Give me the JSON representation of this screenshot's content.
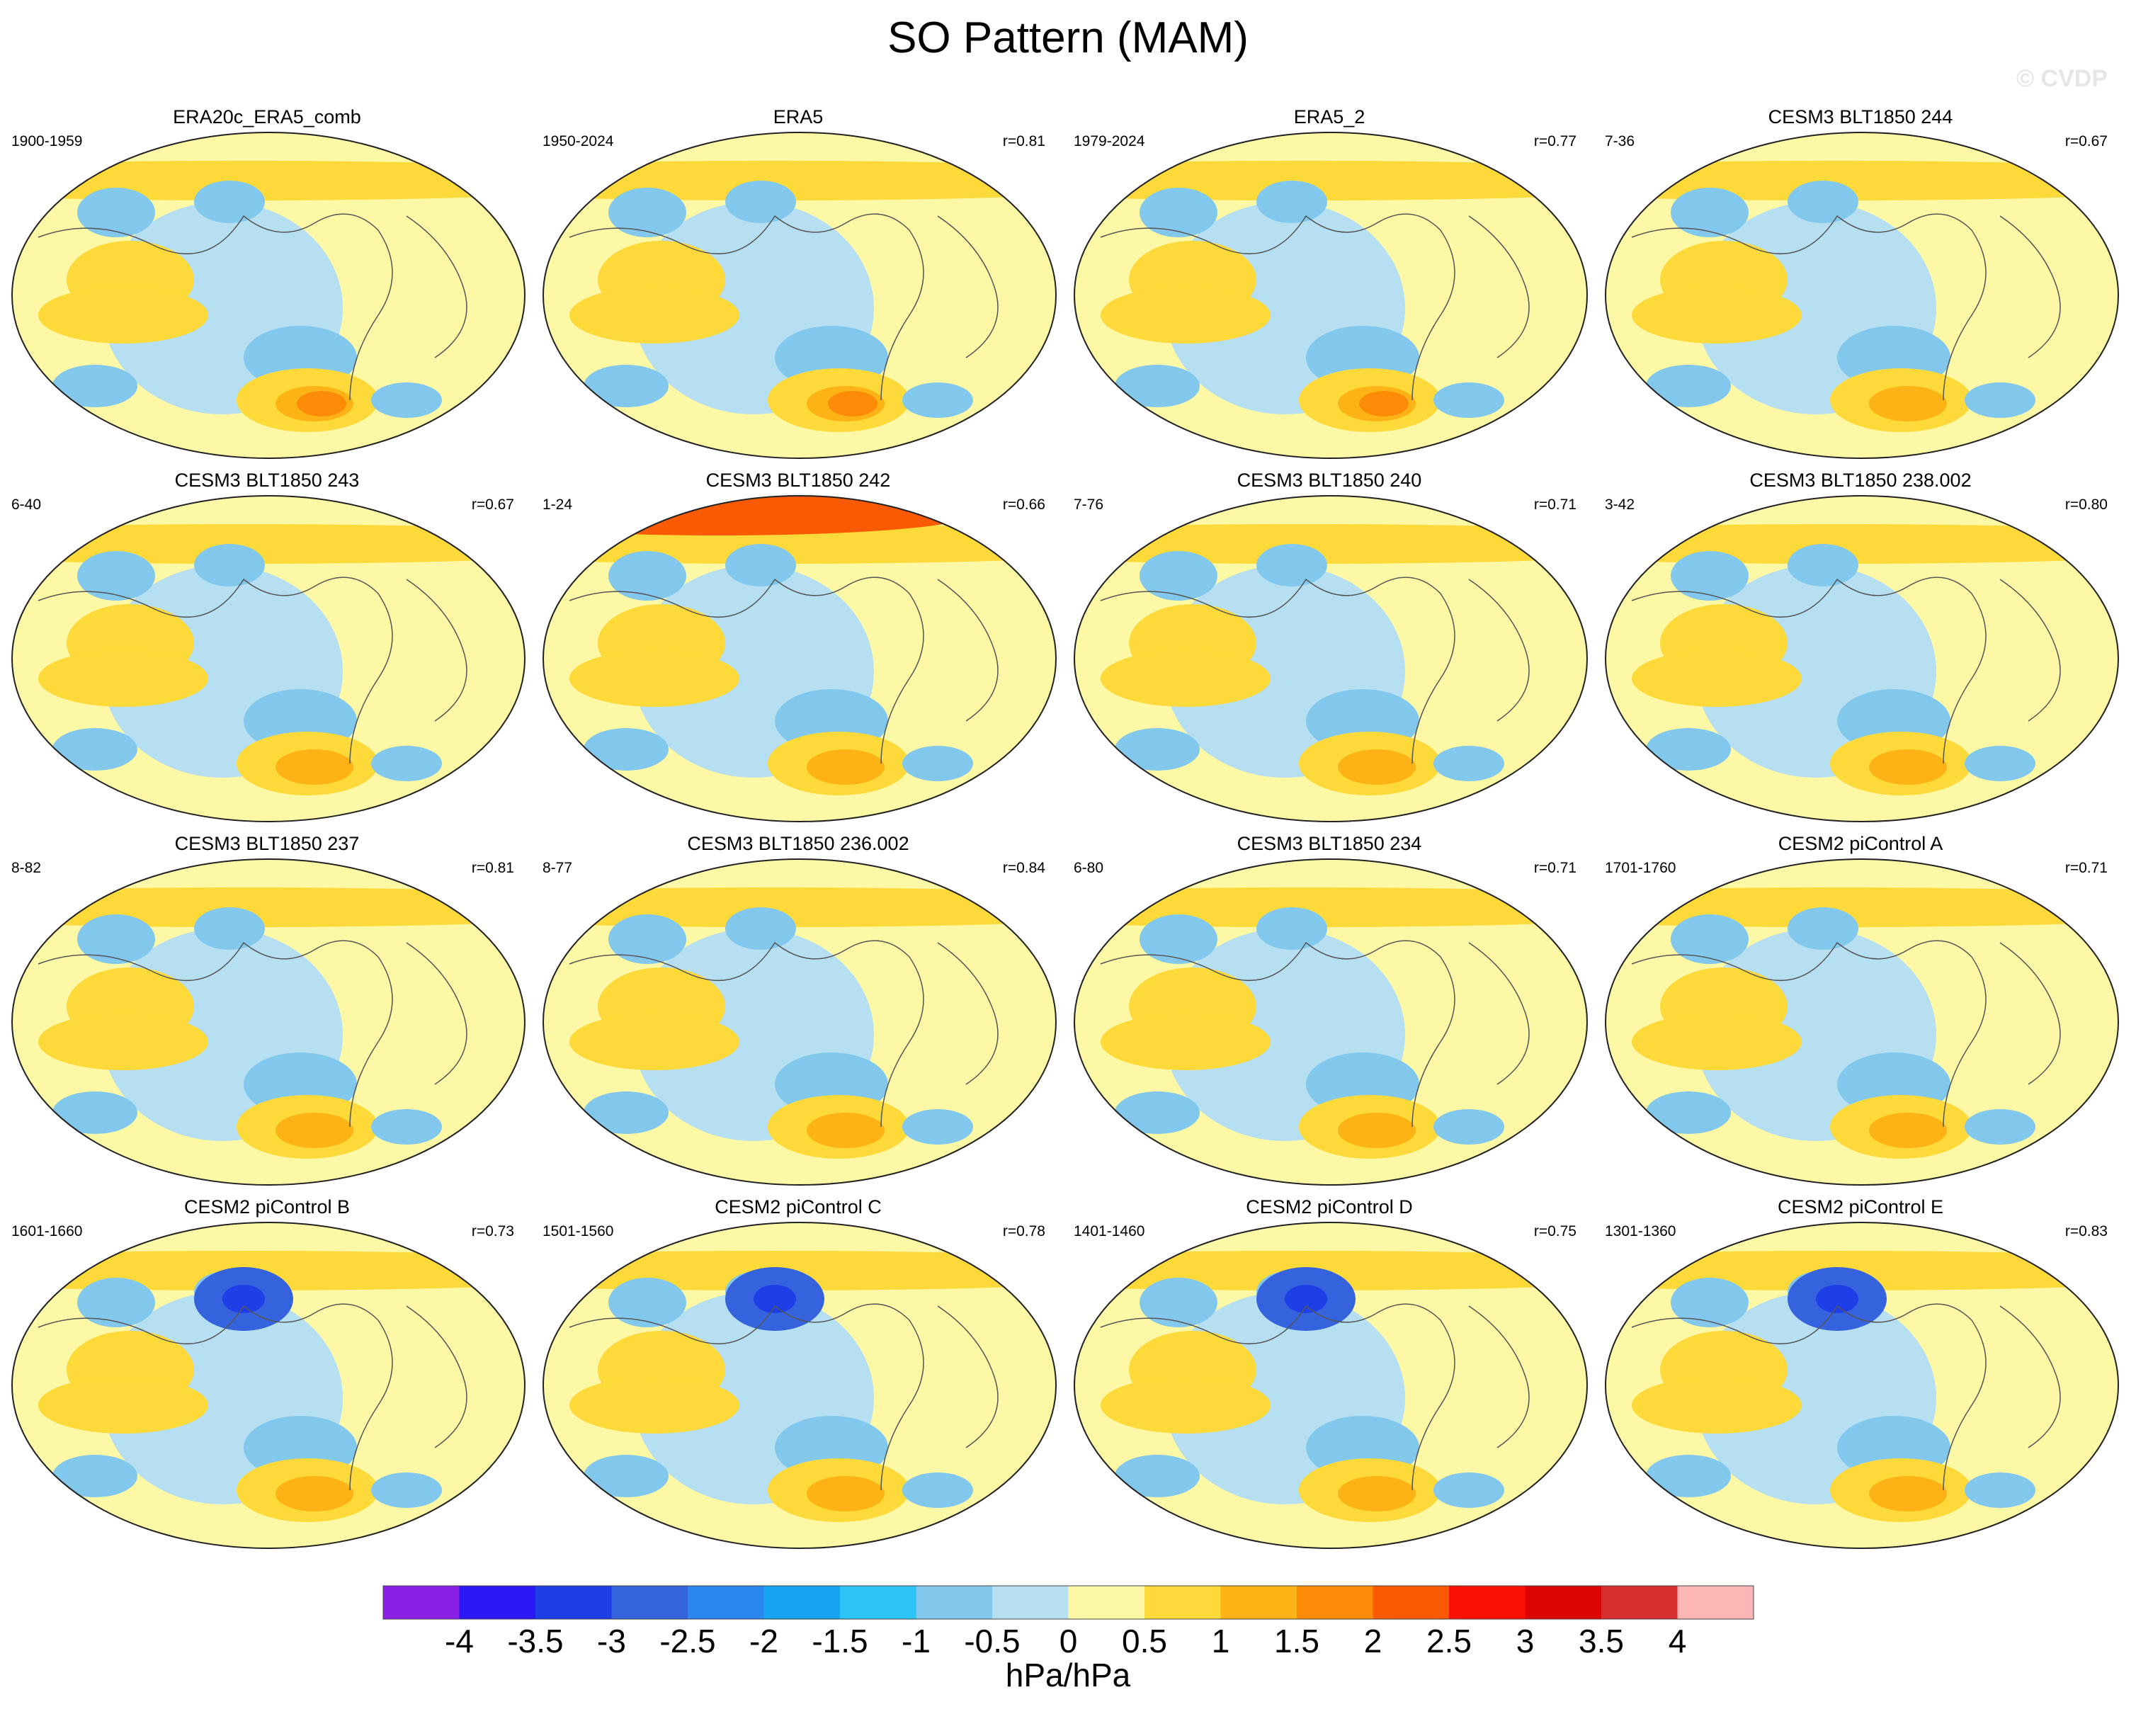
{
  "title": "SO Pattern (MAM)",
  "watermark": "© CVDP",
  "panels": [
    {
      "title": "ERA20c_ERA5_comb",
      "period": "1900-1959",
      "r": ""
    },
    {
      "title": "ERA5",
      "period": "1950-2024",
      "r": "r=0.81"
    },
    {
      "title": "ERA5_2",
      "period": "1979-2024",
      "r": "r=0.77"
    },
    {
      "title": "CESM3 BLT1850 244",
      "period": "7-36",
      "r": "r=0.67"
    },
    {
      "title": "CESM3 BLT1850 243",
      "period": "6-40",
      "r": "r=0.67"
    },
    {
      "title": "CESM3 BLT1850 242",
      "period": "1-24",
      "r": "r=0.66"
    },
    {
      "title": "CESM3 BLT1850 240",
      "period": "7-76",
      "r": "r=0.71"
    },
    {
      "title": "CESM3 BLT1850 238.002",
      "period": "3-42",
      "r": "r=0.80"
    },
    {
      "title": "CESM3 BLT1850 237",
      "period": "8-82",
      "r": "r=0.81"
    },
    {
      "title": "CESM3 BLT1850 236.002",
      "period": "8-77",
      "r": "r=0.84"
    },
    {
      "title": "CESM3 BLT1850 234",
      "period": "6-80",
      "r": "r=0.71"
    },
    {
      "title": "CESM2 piControl A",
      "period": "1701-1760",
      "r": "r=0.71"
    },
    {
      "title": "CESM2 piControl B",
      "period": "1601-1660",
      "r": "r=0.73"
    },
    {
      "title": "CESM2 piControl C",
      "period": "1501-1560",
      "r": "r=0.78"
    },
    {
      "title": "CESM2 piControl D",
      "period": "1401-1460",
      "r": "r=0.75"
    },
    {
      "title": "CESM2 piControl E",
      "period": "1301-1360",
      "r": "r=0.83"
    }
  ],
  "colorbar": {
    "labels": [
      "-4",
      "-3.5",
      "-3",
      "-2.5",
      "-2",
      "-1.5",
      "-1",
      "-0.5",
      "0",
      "0.5",
      "1",
      "1.5",
      "2",
      "2.5",
      "3",
      "3.5",
      "4"
    ],
    "colors": [
      "#8a1fe6",
      "#2a18f5",
      "#1e3ee8",
      "#3563dd",
      "#2b86f0",
      "#16a4f3",
      "#2bc4f5",
      "#82c8ec",
      "#b6dff2",
      "#fdf8a6",
      "#fdd939",
      "#fdb315",
      "#fc8c07",
      "#fb5a05",
      "#fd1005",
      "#dc0505",
      "#d72f2f",
      "#fdb6b6"
    ],
    "units": "hPa/hPa"
  }
}
